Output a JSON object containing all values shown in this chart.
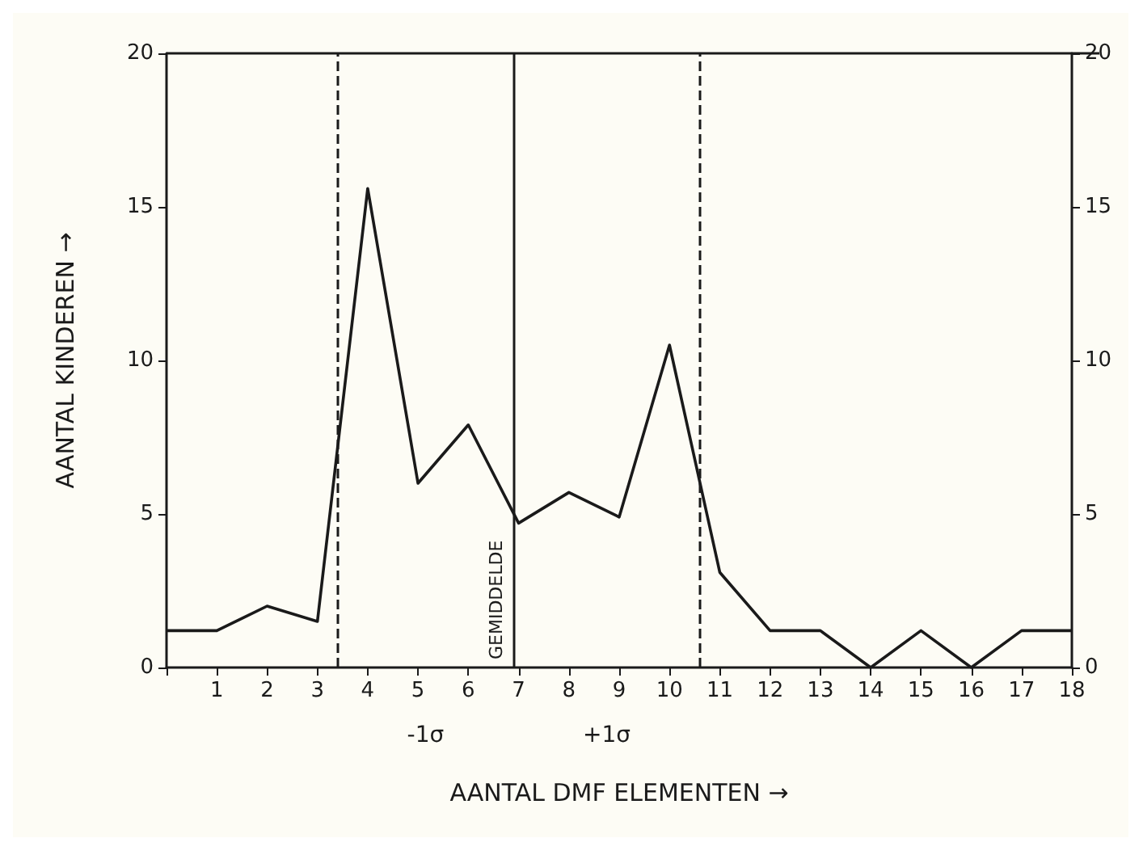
{
  "chart_data": {
    "type": "line",
    "xlabel": "AANTAL DMF ELEMENTEN →",
    "ylabel": "AANTAL KINDEREN →",
    "x": [
      0,
      1,
      2,
      3,
      4,
      5,
      6,
      7,
      8,
      9,
      10,
      11,
      12,
      13,
      14,
      15,
      16,
      17,
      18
    ],
    "series": [
      {
        "color": "#1a1a1a",
        "values": [
          1.2,
          1.2,
          2,
          1.5,
          15.6,
          6,
          7.9,
          4.7,
          5.7,
          4.9,
          10.5,
          3.1,
          1.2,
          1.2,
          0,
          1.2,
          0,
          1.2,
          1.2
        ]
      }
    ],
    "xlim": [
      0,
      18
    ],
    "xticks": [
      {
        "value": 0,
        "label": null
      },
      1,
      2,
      3,
      4,
      5,
      6,
      7,
      8,
      9,
      10,
      11,
      12,
      13,
      14,
      15,
      16,
      17,
      18
    ],
    "ylim": [
      0,
      20
    ],
    "yticks": [
      0,
      5,
      10,
      15,
      20
    ],
    "y2lim": [
      0,
      20
    ],
    "y2ticks": [
      0,
      5,
      10,
      15,
      20
    ],
    "ref_lines": [
      {
        "axis": "x",
        "value": 3.4,
        "color": "#1a1a1a",
        "line_style": "dashed"
      },
      {
        "axis": "x",
        "value": 6.9,
        "label": "GEMIDDELDE",
        "color": "#1a1a1a",
        "line_style": "solid"
      },
      {
        "axis": "x",
        "value": 10.6,
        "color": "#1a1a1a",
        "line_style": "dashed"
      }
    ],
    "annotations": [
      "-1σ",
      "+1σ"
    ],
    "grid": false,
    "marker": "none",
    "line_style": "solid"
  }
}
